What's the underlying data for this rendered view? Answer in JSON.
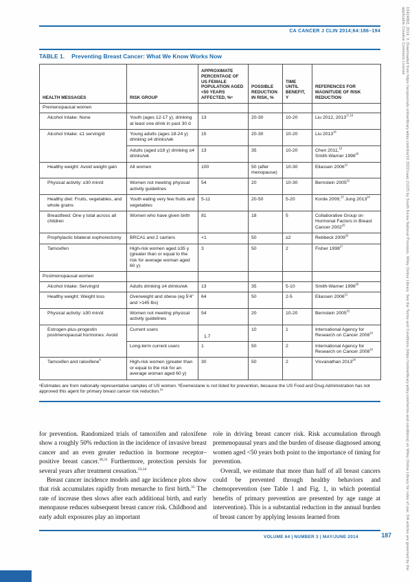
{
  "header": {
    "journal_ref": "CA CANCER J CLIN 2014;64:186–194"
  },
  "table": {
    "label": "TABLE 1.",
    "title": "Preventing Breast Cancer: What We Know Works Now",
    "columns": [
      "HEALTH MESSAGES",
      "RISK GROUP",
      "APPROXIMATE PERCENTAGE OF US FEMALE POPULATION AGED <50 YEARS AFFECTED, %ᵃ",
      "POSSIBLE REDUCTION IN RISK, %",
      "TIME UNTIL BENEFIT, y",
      "REFERENCES FOR MAGNITUDE OF RISK REDUCTION"
    ],
    "rows": [
      {
        "type": "section",
        "label": "Premenopausal women"
      },
      {
        "message": "Alcohol Intake: None",
        "risk": "Youth (ages 12-17 y), drinking at least one drink in past 30 d",
        "pop": "13",
        "red": "20-30",
        "time": "10-20",
        "ref": [
          [
            {
              "t": "Liu 2012, 2013"
            },
            {
              "sup": "17,18"
            }
          ]
        ]
      },
      {
        "message": "Alcohol Intake: ≤1 serving/d",
        "message_rowspan": 2,
        "risk": "Young adults (ages 18-24 y) drinking ≥4 drinks/wk",
        "pop": "15",
        "red": "20-30",
        "time": "10-20",
        "ref": [
          [
            {
              "t": "Liu 2013"
            },
            {
              "sup": "18"
            }
          ]
        ]
      },
      {
        "risk": "Adults (aged ≥18 y) drinking ≥4 drinks/wk",
        "pop": "13",
        "red": "35",
        "time": "10-20",
        "ref": [
          [
            {
              "t": "Chen 2011,"
            },
            {
              "sup": "19"
            }
          ],
          [
            {
              "t": "Smith-Warner 1998"
            },
            {
              "sup": "20"
            }
          ]
        ]
      },
      {
        "message": "Healthy weight: Avoid weight gain",
        "risk": "All women",
        "pop": "100",
        "red": "50 (after menopause)",
        "time": "10-30",
        "ref": [
          [
            {
              "t": "Eliassen 2006"
            },
            {
              "sup": "21"
            }
          ]
        ]
      },
      {
        "message": "Physical activity: ≥30 min/d",
        "risk": "Women not meeting physical activity guidelines",
        "pop": "54",
        "red": "20",
        "time": "10-30",
        "ref": [
          [
            {
              "t": "Bernstein 2005"
            },
            {
              "sup": "22"
            }
          ]
        ]
      },
      {
        "message": "Healthy diet: Fruits, vegetables, and whole grains",
        "risk": "Youth eating very few fruits and vegetables",
        "pop": "5-11",
        "red": "20-50",
        "time": "5-20",
        "ref": [
          [
            {
              "t": "Korde 2009,"
            },
            {
              "sup": "23"
            },
            {
              "t": " Jung 2013"
            },
            {
              "sup": "24"
            }
          ]
        ]
      },
      {
        "message": "Breastfeed: One y total across all children",
        "risk": "Women who have given birth",
        "pop": "81",
        "red": "18",
        "time": "5",
        "ref": [
          [
            {
              "t": "Collaborative Group on Hormonal Factors in Breast Cancer 2002"
            },
            {
              "sup": "25"
            }
          ]
        ]
      },
      {
        "message": "Prophylactic bilateral oophorectomy",
        "risk": "BRCA1 and 2 carriers",
        "pop": "<1",
        "red": "50",
        "time": "≥2",
        "ref": [
          [
            {
              "t": "Rebbeck 2009"
            },
            {
              "sup": "26"
            }
          ]
        ]
      },
      {
        "message": "Tamoxifen",
        "risk": "High-risk women aged ≥35 y (greater than or equal to the risk for average woman aged 60 y)",
        "pop": "3",
        "red": "50",
        "time": "2",
        "ref": [
          [
            {
              "t": "Fisher 1998"
            },
            {
              "sup": "27"
            }
          ]
        ]
      },
      {
        "type": "section",
        "label": "Postmenopausal women"
      },
      {
        "message": "Alcohol Intake: Serving/d",
        "risk": "Adults drinking ≥4 drinks/wk",
        "pop": "13",
        "red": "35",
        "time": "5-10",
        "ref": [
          [
            {
              "t": "Smith-Warner 1998"
            },
            {
              "sup": "20"
            }
          ]
        ]
      },
      {
        "message": "Healthy weight: Weight loss",
        "risk": "Overweight and obese (eg 5'4\" and >145 lbs)",
        "pop": "64",
        "red": "50",
        "time": "2-5",
        "ref": [
          [
            {
              "t": "Eliassen 2006"
            },
            {
              "sup": "21"
            }
          ]
        ]
      },
      {
        "message": "Physical activity: ≥30 min/d",
        "risk": "Women not meeting physical activity guidelines",
        "pop": "54",
        "red": "20",
        "time": "10-20",
        "ref": [
          [
            {
              "t": "Bernstein 2005"
            },
            {
              "sup": "22"
            }
          ]
        ]
      },
      {
        "message": "Estrogen-plus-progestin postmenopausal hormones: Avoid",
        "message_rowspan": 2,
        "risk": "Current users",
        "pop": "1.7",
        "pop_low": true,
        "red": "10",
        "time": "1",
        "ref": [
          [
            {
              "t": "International Agency for Research on Cancer 2008"
            },
            {
              "sup": "16"
            }
          ]
        ]
      },
      {
        "risk": "Long-term current users",
        "pop": "1",
        "red": "50",
        "time": "2",
        "ref": [
          [
            {
              "t": "International Agency for Research on Cancer 2008"
            },
            {
              "sup": "16"
            }
          ]
        ]
      },
      {
        "message": "Tamoxifen and raloxifene",
        "message_sup": "b",
        "risk": "High-risk women (greater than or equal to the risk for an average woman aged 60 y)",
        "pop": "30",
        "red": "50",
        "time": "2",
        "ref": [
          [
            {
              "t": "Visvanathan 2013"
            },
            {
              "sup": "28"
            }
          ]
        ]
      }
    ],
    "footnote": [
      {
        "t": "ᵃEstimates are from nationally representative samples of US women. ᵇExemestane is not listed for prevention, because the US Food and Drug Administration has not approved this agent for primary breast cancer risk reduction."
      },
      {
        "sup": "53"
      }
    ]
  },
  "body": {
    "left": [
      {
        "indent": false,
        "segments": [
          {
            "t": "for prevention. Randomized trials of tamoxifen and raloxifene show a roughly 50% reduction in the incidence of invasive breast cancer and an even greater reduction in hormone receptor–positive breast cancer."
          },
          {
            "sup": "30,31"
          },
          {
            "t": " Furthermore, protection persists for several years after treatment cessation."
          },
          {
            "sup": "33,34"
          }
        ]
      },
      {
        "indent": true,
        "segments": [
          {
            "t": "Breast cancer incidence models and age incidence plots show that risk accumulates rapidly from menarche to first birth."
          },
          {
            "sup": "35"
          },
          {
            "t": " The rate of increase then slows after each additional birth, and early menopause reduces subsequent breast cancer risk. Childhood and early adult exposures play an important"
          }
        ]
      }
    ],
    "right": [
      {
        "indent": false,
        "segments": [
          {
            "t": "role in driving breast cancer risk. Risk accumulation through premenopausal years and the burden of disease diagnosed among women aged <50 years both point to the importance of timing for prevention."
          }
        ]
      },
      {
        "indent": true,
        "segments": [
          {
            "t": "Overall, we estimate that more than half of all breast cancers could be prevented through healthy behaviors and chemoprevention (see Table 1 and Fig. 1, in which potential benefits of primary prevention are presented by age range at intervention). This is a substantial reduction in the annual burden of breast cancer by applying lessons learned from"
          }
        ]
      }
    ]
  },
  "footer": {
    "volume_line": "VOLUME 64 | NUMBER 3 | MAY/JUNE 2014",
    "page_number": "187"
  },
  "sidebar": {
    "text": "15424863, 2014, 3, Downloaded from https://acsjournals.onlinelibrary.wiley.com/doi/10.3322/caac.21225 by South Korea National Provision, Wiley Online Library. See the Terms and Conditions (https://onlinelibrary.wiley.com/terms-and-conditions) on Wiley Online Library for rules of use; OA articles are governed by the applicable Creative Commons License"
  },
  "colors": {
    "accent_blue": "#1a6aab"
  }
}
